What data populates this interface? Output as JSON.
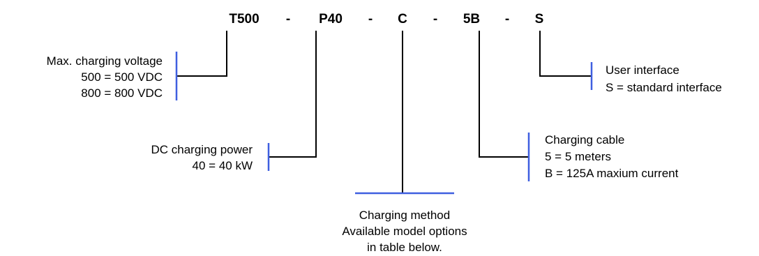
{
  "colors": {
    "accent": "#3f5fe0",
    "line": "#000000",
    "text": "#000000",
    "background": "#ffffff"
  },
  "model_code": {
    "segments": [
      "T500",
      "P40",
      "C",
      "5B",
      "S"
    ],
    "separator": "-"
  },
  "annotations": {
    "voltage": {
      "title": "Max. charging voltage",
      "lines": [
        "500 = 500 VDC",
        "800 = 800 VDC"
      ]
    },
    "power": {
      "title": "DC charging power",
      "lines": [
        "40 = 40 kW"
      ]
    },
    "method": {
      "title": "Charging method",
      "lines": [
        "Available model options",
        "in table below."
      ]
    },
    "cable": {
      "title": "Charging cable",
      "lines": [
        "5 = 5 meters",
        "B = 125A maxium current"
      ]
    },
    "interface": {
      "title": "User interface",
      "lines": [
        "S = standard interface"
      ]
    }
  }
}
